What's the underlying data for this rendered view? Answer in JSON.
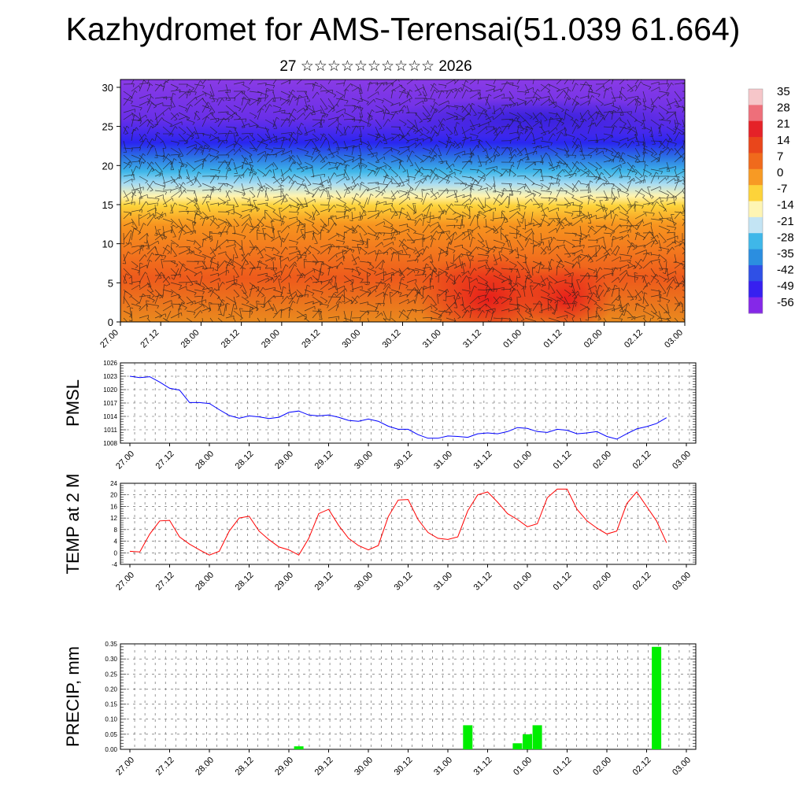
{
  "header": {
    "title": "Kazhydromet for AMS-Terensai(51.039 61.664)",
    "subtitle": "27 ☆☆☆☆☆☆☆☆☆☆ 2026"
  },
  "x_tick_labels": [
    "27.00",
    "27.12",
    "28.00",
    "28.12",
    "29.00",
    "29.12",
    "30.00",
    "30.12",
    "31.00",
    "31.12",
    "01.00",
    "01.12",
    "02.00",
    "02.12",
    "03.00"
  ],
  "chart_data": [
    {
      "id": "cross-section",
      "type": "heatmap",
      "title": "",
      "ylabel": "",
      "ylim": [
        0,
        31
      ],
      "y_ticks": [
        "0",
        "5",
        "10",
        "15",
        "20",
        "25",
        "30"
      ],
      "colorbar": {
        "labels": [
          "35",
          "28",
          "21",
          "14",
          "7",
          "0",
          "-7",
          "-14",
          "-21",
          "-28",
          "-35",
          "-42",
          "-49",
          "-56"
        ],
        "colors": [
          "#f6c6c9",
          "#ee6f7a",
          "#e52228",
          "#e9461b",
          "#f06a1c",
          "#f79a24",
          "#fdd33a",
          "#fef5b4",
          "#c3e4f4",
          "#3fb7e9",
          "#2b8ee0",
          "#2f50e6",
          "#3720f0",
          "#8528e8"
        ]
      }
    },
    {
      "id": "pmsl",
      "type": "line",
      "ylabel": "PMSL",
      "ylim": [
        1008,
        1026
      ],
      "y_ticks": [
        "1008",
        "1011",
        "1014",
        "1017",
        "1020",
        "1023",
        "1026"
      ],
      "color": "#0000ff",
      "x": [
        0,
        1,
        2,
        3,
        4,
        5,
        6,
        7,
        8,
        9,
        10,
        11,
        12,
        13,
        14,
        15,
        16,
        17,
        18,
        19,
        20,
        21,
        22,
        23,
        24,
        25,
        26,
        27,
        28,
        29,
        30,
        31,
        32,
        33,
        34,
        35,
        36,
        37,
        38,
        39,
        40,
        41,
        42,
        43,
        44,
        45,
        46,
        47,
        48,
        49,
        50,
        51,
        52,
        53,
        54,
        55,
        56
      ],
      "values": [
        1023,
        1022.7,
        1022.9,
        1021.7,
        1020.3,
        1019.9,
        1017.1,
        1017.1,
        1016.9,
        1015.5,
        1014.2,
        1013.6,
        1014.1,
        1013.9,
        1013.5,
        1013.8,
        1014.9,
        1015.2,
        1014.3,
        1014.1,
        1014.3,
        1013.8,
        1013.1,
        1012.9,
        1013.4,
        1012.9,
        1011.8,
        1011.1,
        1011.1,
        1009.9,
        1009.1,
        1009.1,
        1009.6,
        1009.5,
        1009.3,
        1010.1,
        1010.3,
        1010.1,
        1010.6,
        1011.5,
        1011.3,
        1010.6,
        1010.4,
        1011.1,
        1010.9,
        1010.1,
        1010.3,
        1010.6,
        1009.5,
        1008.9,
        1010.1,
        1011.2,
        1011.7,
        1012.4,
        1013.7,
        null,
        null
      ]
    },
    {
      "id": "temp2m",
      "type": "line",
      "ylabel": "TEMP at 2 M",
      "ylim": [
        -4,
        24
      ],
      "y_ticks": [
        "-4",
        "0",
        "4",
        "8",
        "12",
        "16",
        "20",
        "24"
      ],
      "color": "#ff0000",
      "x": [
        0,
        1,
        2,
        3,
        4,
        5,
        6,
        7,
        8,
        9,
        10,
        11,
        12,
        13,
        14,
        15,
        16,
        17,
        18,
        19,
        20,
        21,
        22,
        23,
        24,
        25,
        26,
        27,
        28,
        29,
        30,
        31,
        32,
        33,
        34,
        35,
        36,
        37,
        38,
        39,
        40,
        41,
        42,
        43,
        44,
        45,
        46,
        47,
        48,
        49,
        50,
        51,
        52,
        53,
        54
      ],
      "values": [
        0.5,
        0.3,
        6.5,
        11,
        11.2,
        5.5,
        3,
        1,
        -0.8,
        0.5,
        7.5,
        12,
        12.6,
        7.5,
        4.5,
        2,
        1,
        -0.8,
        5,
        13.5,
        15,
        9.5,
        5,
        2.5,
        1,
        2.5,
        12.5,
        18.2,
        18.4,
        11.5,
        7,
        5,
        4.6,
        5.5,
        14.5,
        20,
        21,
        17.5,
        13.5,
        11.5,
        9,
        10,
        19,
        22,
        22,
        15,
        11,
        8.5,
        6.5,
        7.5,
        17,
        21,
        16,
        11,
        3.5
      ]
    },
    {
      "id": "precip",
      "type": "bar",
      "ylabel": "PRECIP, mm",
      "ylim": [
        0,
        0.35
      ],
      "y_ticks": [
        "0.00",
        "0.05",
        "0.10",
        "0.15",
        "0.20",
        "0.25",
        "0.30",
        "0.35"
      ],
      "color": "#00ee00",
      "x": [
        17,
        34,
        39,
        40,
        41,
        53
      ],
      "values": [
        0.01,
        0.08,
        0.02,
        0.05,
        0.08,
        0.34
      ]
    }
  ]
}
